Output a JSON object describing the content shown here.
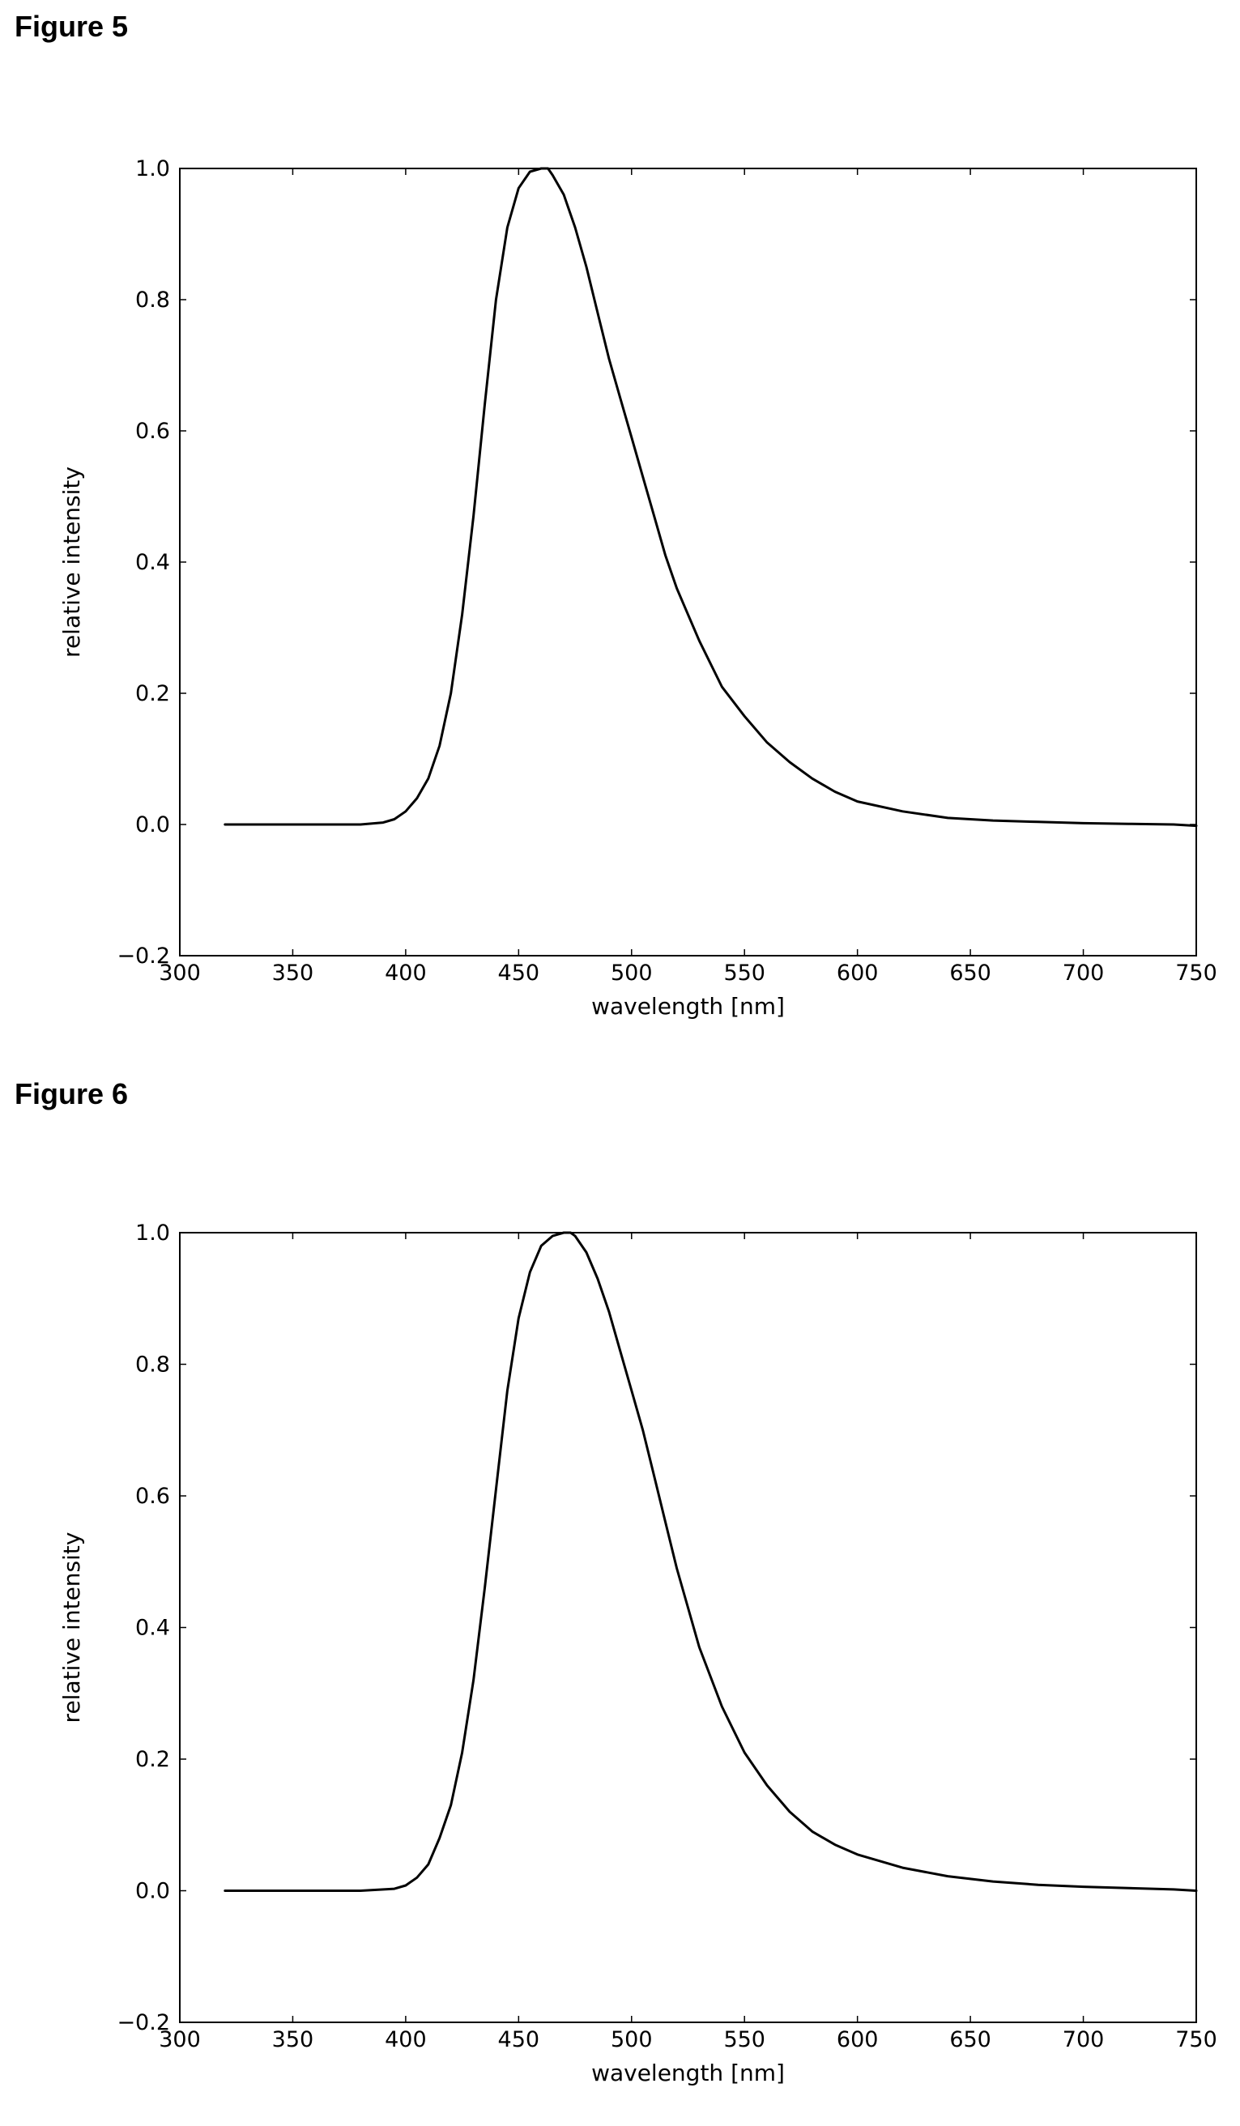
{
  "figures": [
    {
      "heading": "Figure 5"
    },
    {
      "heading": "Figure 6"
    }
  ],
  "chart_data": [
    {
      "type": "line",
      "title": "",
      "xlabel": "wavelength [nm]",
      "ylabel": "relative intensity",
      "xlim": [
        300,
        750
      ],
      "ylim": [
        -0.2,
        1.0
      ],
      "xticks": [
        "300",
        "350",
        "400",
        "450",
        "500",
        "550",
        "600",
        "650",
        "700",
        "750"
      ],
      "yticks": [
        "−0.2",
        "0.0",
        "0.2",
        "0.4",
        "0.6",
        "0.8",
        "1.0"
      ],
      "grid": false,
      "line_color": "#000000",
      "series": [
        {
          "x": [
            320,
            340,
            360,
            380,
            390,
            395,
            400,
            405,
            410,
            415,
            420,
            425,
            430,
            435,
            440,
            445,
            450,
            455,
            460,
            463,
            465,
            470,
            475,
            480,
            485,
            490,
            495,
            500,
            505,
            510,
            515,
            520,
            525,
            530,
            540,
            550,
            560,
            570,
            580,
            590,
            600,
            620,
            640,
            660,
            680,
            700,
            720,
            740,
            750
          ],
          "y": [
            0.0,
            0.0,
            0.0,
            0.0,
            0.003,
            0.008,
            0.02,
            0.04,
            0.07,
            0.12,
            0.2,
            0.32,
            0.47,
            0.64,
            0.8,
            0.91,
            0.97,
            0.995,
            1.0,
            1.0,
            0.99,
            0.96,
            0.91,
            0.85,
            0.78,
            0.71,
            0.65,
            0.59,
            0.53,
            0.47,
            0.41,
            0.36,
            0.32,
            0.28,
            0.21,
            0.165,
            0.125,
            0.095,
            0.07,
            0.05,
            0.035,
            0.02,
            0.01,
            0.006,
            0.004,
            0.002,
            0.001,
            0.0,
            -0.002
          ]
        }
      ]
    },
    {
      "type": "line",
      "title": "",
      "xlabel": "wavelength [nm]",
      "ylabel": "relative intensity",
      "xlim": [
        300,
        750
      ],
      "ylim": [
        -0.2,
        1.0
      ],
      "xticks": [
        "300",
        "350",
        "400",
        "450",
        "500",
        "550",
        "600",
        "650",
        "700",
        "750"
      ],
      "yticks": [
        "−0.2",
        "0.0",
        "0.2",
        "0.4",
        "0.6",
        "0.8",
        "1.0"
      ],
      "grid": false,
      "line_color": "#000000",
      "series": [
        {
          "x": [
            320,
            340,
            360,
            380,
            395,
            400,
            405,
            410,
            415,
            420,
            425,
            430,
            435,
            440,
            445,
            450,
            455,
            460,
            465,
            470,
            473,
            475,
            480,
            485,
            490,
            495,
            500,
            505,
            510,
            515,
            520,
            525,
            530,
            540,
            550,
            560,
            570,
            580,
            590,
            600,
            620,
            640,
            660,
            680,
            700,
            720,
            740,
            750
          ],
          "y": [
            0.0,
            0.0,
            0.0,
            0.0,
            0.003,
            0.008,
            0.02,
            0.04,
            0.08,
            0.13,
            0.21,
            0.32,
            0.46,
            0.61,
            0.76,
            0.87,
            0.94,
            0.98,
            0.995,
            1.0,
            1.0,
            0.995,
            0.97,
            0.93,
            0.88,
            0.82,
            0.76,
            0.7,
            0.63,
            0.56,
            0.49,
            0.43,
            0.37,
            0.28,
            0.21,
            0.16,
            0.12,
            0.09,
            0.07,
            0.055,
            0.035,
            0.022,
            0.014,
            0.009,
            0.006,
            0.004,
            0.002,
            0.0
          ]
        }
      ]
    }
  ]
}
